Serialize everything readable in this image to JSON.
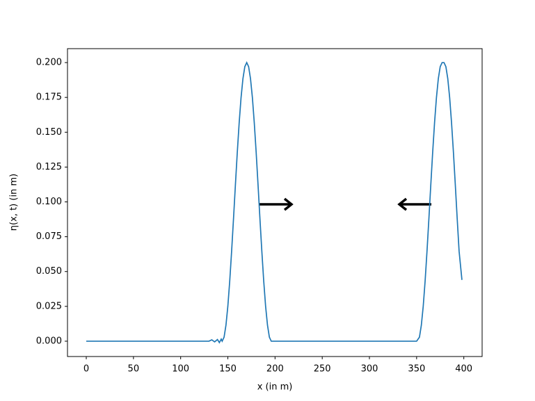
{
  "chart_data": {
    "type": "line",
    "xlabel": "x (in m)",
    "ylabel": "η(x, t) (in m)",
    "x": [
      0,
      20,
      40,
      60,
      80,
      100,
      120,
      130,
      133,
      136,
      139,
      141,
      143,
      144,
      146,
      148,
      150,
      152,
      154,
      156,
      158,
      160,
      162,
      164,
      166,
      168,
      170,
      172,
      174,
      176,
      178,
      180,
      182,
      184,
      186,
      188,
      190,
      192,
      194,
      196,
      200,
      250,
      300,
      350,
      353,
      355,
      357,
      359,
      361,
      363,
      365,
      367,
      369,
      371,
      373,
      375,
      377,
      379,
      381,
      383,
      385,
      387,
      389,
      391,
      393,
      395,
      398
    ],
    "series": [
      {
        "name": "eta",
        "color": "#1f77b4",
        "values": [
          0,
          0,
          0,
          0,
          0,
          0,
          0,
          0,
          0.001,
          -0.0005,
          0.0012,
          -0.001,
          0.0015,
          0,
          0.0029,
          0.0115,
          0.0251,
          0.0432,
          0.0646,
          0.0879,
          0.1121,
          0.1355,
          0.1568,
          0.1749,
          0.1885,
          0.1971,
          0.2,
          0.1971,
          0.1885,
          0.1749,
          0.1568,
          0.1355,
          0.1121,
          0.0879,
          0.0646,
          0.0432,
          0.0251,
          0.0115,
          0.0029,
          0,
          0,
          0,
          0,
          0,
          0.0029,
          0.0115,
          0.0251,
          0.0432,
          0.0646,
          0.0879,
          0.1121,
          0.1355,
          0.1568,
          0.1749,
          0.1885,
          0.1971,
          0.2,
          0.2,
          0.1971,
          0.1885,
          0.1749,
          0.1568,
          0.1355,
          0.1121,
          0.0879,
          0.0646,
          0.044
        ]
      }
    ],
    "xlim": [
      -19.9,
      419.4
    ],
    "ylim": [
      -0.011,
      0.21
    ],
    "xticks": [
      0,
      50,
      100,
      150,
      200,
      250,
      300,
      350,
      400
    ],
    "yticks": [
      {
        "value": 0,
        "label": "0.000"
      },
      {
        "value": 0.025,
        "label": "0.025"
      },
      {
        "value": 0.05,
        "label": "0.050"
      },
      {
        "value": 0.075,
        "label": "0.075"
      },
      {
        "value": 0.1,
        "label": "0.100"
      },
      {
        "value": 0.125,
        "label": "0.125"
      },
      {
        "value": 0.15,
        "label": "0.150"
      },
      {
        "value": 0.175,
        "label": "0.175"
      },
      {
        "value": 0.2,
        "label": "0.200"
      }
    ]
  }
}
